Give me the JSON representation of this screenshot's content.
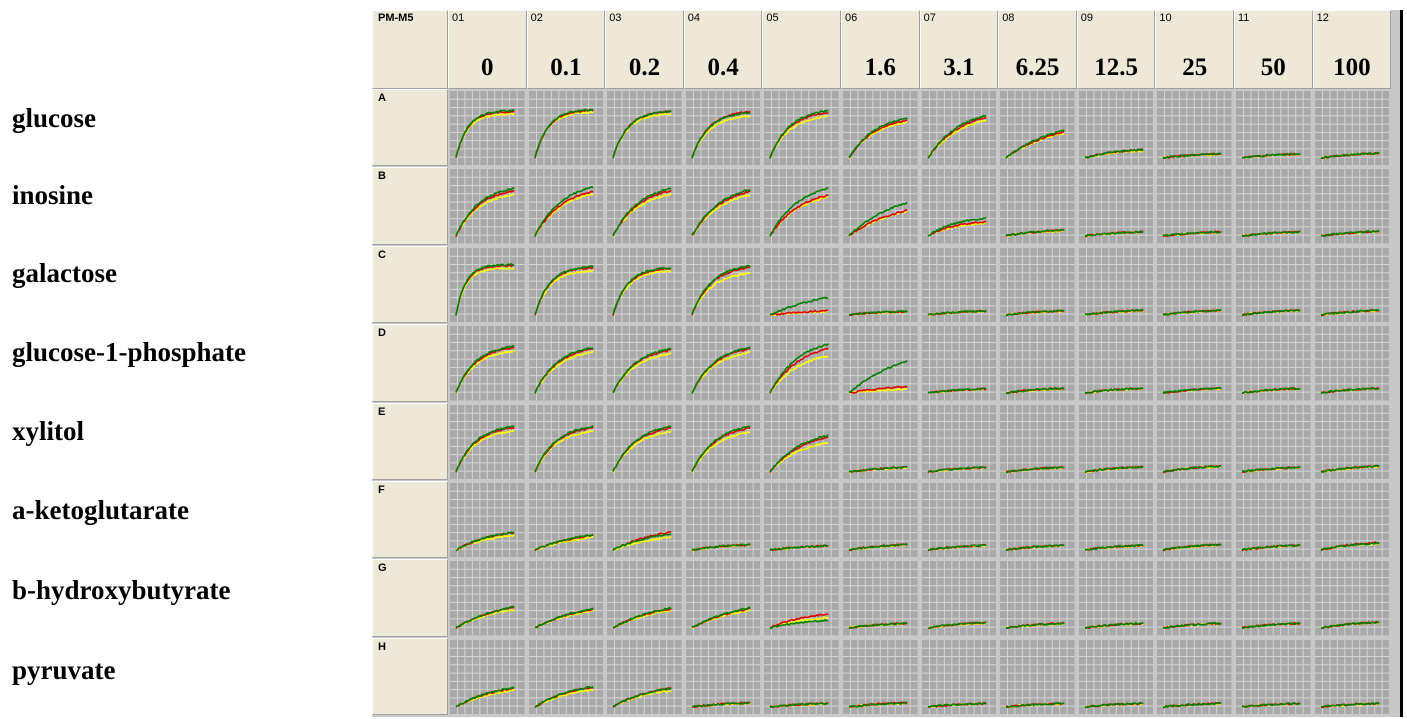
{
  "plate_name": "PM-M5",
  "columns": [
    {
      "id": "01",
      "conc": "0"
    },
    {
      "id": "02",
      "conc": "0.1"
    },
    {
      "id": "03",
      "conc": "0.2"
    },
    {
      "id": "04",
      "conc": "0.4"
    },
    {
      "id": "05",
      "conc": ""
    },
    {
      "id": "06",
      "conc": "1.6"
    },
    {
      "id": "07",
      "conc": "3.1"
    },
    {
      "id": "08",
      "conc": "6.25"
    },
    {
      "id": "09",
      "conc": "12.5"
    },
    {
      "id": "10",
      "conc": "25"
    },
    {
      "id": "11",
      "conc": "50"
    },
    {
      "id": "12",
      "conc": "100"
    }
  ],
  "rows": [
    {
      "letter": "A",
      "label": "glucose"
    },
    {
      "letter": "B",
      "label": "inosine"
    },
    {
      "letter": "C",
      "label": "galactose"
    },
    {
      "letter": "D",
      "label": "glucose-1-phosphate"
    },
    {
      "letter": "E",
      "label": "xylitol"
    },
    {
      "letter": "F",
      "label": "a-ketoglutarate"
    },
    {
      "letter": "G",
      "label": "b-hydroxybutyrate"
    },
    {
      "letter": "H",
      "label": "pyruvate"
    }
  ],
  "colors": {
    "well_bg": "#a9a9a9",
    "grid": "#d4d4d4",
    "plate_bg": "#c8c8c8",
    "header_bg": "#ece9d8",
    "series_red": "#e00000",
    "series_yellow": "#ffff00",
    "series_green": "#008000"
  },
  "chart_data": {
    "type": "line",
    "title": "",
    "xlabel": "",
    "ylabel": "",
    "series_names": [],
    "curve_model": "saturating kinetic curves per well; values are relative plateau height (0-1) and rise rate",
    "wells": [
      [
        {
          "plateau": 0.8,
          "rate": 5.0,
          "red": 1.0,
          "yellow": 0.95,
          "green": 1.02
        },
        {
          "plateau": 0.82,
          "rate": 4.5,
          "red": 1.0,
          "yellow": 0.96,
          "green": 1.01
        },
        {
          "plateau": 0.8,
          "rate": 4.0,
          "red": 1.0,
          "yellow": 0.95,
          "green": 1.0
        },
        {
          "plateau": 0.78,
          "rate": 3.5,
          "red": 1.02,
          "yellow": 0.92,
          "green": 1.0
        },
        {
          "plateau": 0.78,
          "rate": 3.0,
          "red": 1.0,
          "yellow": 0.92,
          "green": 1.04
        },
        {
          "plateau": 0.65,
          "rate": 2.2,
          "red": 1.0,
          "yellow": 0.95,
          "green": 1.05
        },
        {
          "plateau": 0.7,
          "rate": 1.8,
          "red": 1.0,
          "yellow": 0.93,
          "green": 1.05
        },
        {
          "plateau": 0.45,
          "rate": 1.2,
          "red": 1.0,
          "yellow": 0.95,
          "green": 1.05
        },
        {
          "plateau": 0.14,
          "rate": 2.0,
          "red": 1.0,
          "yellow": 0.85,
          "green": 1.0
        },
        {
          "plateau": 0.07,
          "rate": 1.5,
          "red": 1.0,
          "yellow": 0.9,
          "green": 1.0
        },
        {
          "plateau": 0.07,
          "rate": 1.5,
          "red": 1.0,
          "yellow": 0.9,
          "green": 1.0
        },
        {
          "plateau": 0.08,
          "rate": 1.5,
          "red": 1.0,
          "yellow": 0.95,
          "green": 1.0
        }
      ],
      [
        {
          "plateau": 0.78,
          "rate": 2.5,
          "red": 1.0,
          "yellow": 0.92,
          "green": 1.05
        },
        {
          "plateau": 0.8,
          "rate": 2.2,
          "red": 0.95,
          "yellow": 0.9,
          "green": 1.05
        },
        {
          "plateau": 0.78,
          "rate": 2.2,
          "red": 1.0,
          "yellow": 0.92,
          "green": 1.05
        },
        {
          "plateau": 0.77,
          "rate": 2.0,
          "red": 1.0,
          "yellow": 0.92,
          "green": 1.04
        },
        {
          "plateau": 0.76,
          "rate": 2.0,
          "red": 0.92,
          "yellow": 0.88,
          "green": 1.08
        },
        {
          "plateau": 0.5,
          "rate": 1.2,
          "red": 0.88,
          "yellow": 0.85,
          "green": 1.15
        },
        {
          "plateau": 0.28,
          "rate": 2.0,
          "red": 0.88,
          "yellow": 0.8,
          "green": 1.1
        },
        {
          "plateau": 0.1,
          "rate": 1.5,
          "red": 1.0,
          "yellow": 0.9,
          "green": 1.05
        },
        {
          "plateau": 0.07,
          "rate": 1.5,
          "red": 1.0,
          "yellow": 0.9,
          "green": 1.0
        },
        {
          "plateau": 0.07,
          "rate": 1.5,
          "red": 1.0,
          "yellow": 0.9,
          "green": 1.0
        },
        {
          "plateau": 0.07,
          "rate": 1.5,
          "red": 1.0,
          "yellow": 0.9,
          "green": 1.0
        },
        {
          "plateau": 0.08,
          "rate": 1.5,
          "red": 1.0,
          "yellow": 0.9,
          "green": 1.0
        }
      ],
      [
        {
          "plateau": 0.85,
          "rate": 6.0,
          "red": 1.0,
          "yellow": 0.95,
          "green": 1.02
        },
        {
          "plateau": 0.82,
          "rate": 4.0,
          "red": 1.0,
          "yellow": 0.93,
          "green": 1.02
        },
        {
          "plateau": 0.8,
          "rate": 4.0,
          "red": 1.0,
          "yellow": 0.95,
          "green": 1.02
        },
        {
          "plateau": 0.82,
          "rate": 3.0,
          "red": 1.0,
          "yellow": 0.88,
          "green": 1.03
        },
        {
          "plateau": 0.3,
          "rate": 1.0,
          "red": 0.25,
          "yellow": 0.2,
          "green": 1.0
        },
        {
          "plateau": 0.06,
          "rate": 1.5,
          "red": 1.0,
          "yellow": 0.9,
          "green": 1.0
        },
        {
          "plateau": 0.07,
          "rate": 1.5,
          "red": 1.0,
          "yellow": 0.9,
          "green": 1.0
        },
        {
          "plateau": 0.07,
          "rate": 1.5,
          "red": 1.0,
          "yellow": 0.9,
          "green": 1.0
        },
        {
          "plateau": 0.08,
          "rate": 1.5,
          "red": 1.0,
          "yellow": 0.9,
          "green": 1.0
        },
        {
          "plateau": 0.08,
          "rate": 1.5,
          "red": 1.0,
          "yellow": 0.9,
          "green": 1.0
        },
        {
          "plateau": 0.08,
          "rate": 1.5,
          "red": 1.0,
          "yellow": 0.9,
          "green": 1.0
        },
        {
          "plateau": 0.08,
          "rate": 1.5,
          "red": 1.0,
          "yellow": 0.9,
          "green": 1.0
        }
      ],
      [
        {
          "plateau": 0.78,
          "rate": 3.0,
          "red": 1.0,
          "yellow": 0.93,
          "green": 1.03
        },
        {
          "plateau": 0.76,
          "rate": 2.5,
          "red": 1.0,
          "yellow": 0.93,
          "green": 1.03
        },
        {
          "plateau": 0.74,
          "rate": 2.5,
          "red": 1.0,
          "yellow": 0.92,
          "green": 1.03
        },
        {
          "plateau": 0.76,
          "rate": 2.5,
          "red": 1.0,
          "yellow": 0.92,
          "green": 1.03
        },
        {
          "plateau": 0.8,
          "rate": 2.0,
          "red": 0.95,
          "yellow": 0.8,
          "green": 1.05
        },
        {
          "plateau": 0.55,
          "rate": 1.0,
          "red": 0.2,
          "yellow": 0.12,
          "green": 1.0
        },
        {
          "plateau": 0.07,
          "rate": 1.5,
          "red": 1.0,
          "yellow": 0.9,
          "green": 1.0
        },
        {
          "plateau": 0.08,
          "rate": 1.5,
          "red": 1.0,
          "yellow": 0.9,
          "green": 1.0
        },
        {
          "plateau": 0.08,
          "rate": 1.5,
          "red": 1.0,
          "yellow": 0.9,
          "green": 1.0
        },
        {
          "plateau": 0.08,
          "rate": 1.5,
          "red": 1.0,
          "yellow": 0.9,
          "green": 1.0
        },
        {
          "plateau": 0.08,
          "rate": 1.5,
          "red": 1.0,
          "yellow": 0.9,
          "green": 1.0
        },
        {
          "plateau": 0.08,
          "rate": 1.5,
          "red": 1.0,
          "yellow": 0.9,
          "green": 1.0
        }
      ],
      [
        {
          "plateau": 0.76,
          "rate": 3.0,
          "red": 1.0,
          "yellow": 0.93,
          "green": 1.03
        },
        {
          "plateau": 0.76,
          "rate": 2.8,
          "red": 1.0,
          "yellow": 0.92,
          "green": 1.03
        },
        {
          "plateau": 0.76,
          "rate": 2.5,
          "red": 1.0,
          "yellow": 0.92,
          "green": 1.03
        },
        {
          "plateau": 0.76,
          "rate": 2.5,
          "red": 1.0,
          "yellow": 0.9,
          "green": 1.03
        },
        {
          "plateau": 0.6,
          "rate": 1.8,
          "red": 1.0,
          "yellow": 0.85,
          "green": 1.05
        },
        {
          "plateau": 0.08,
          "rate": 1.5,
          "red": 1.0,
          "yellow": 0.9,
          "green": 1.0
        },
        {
          "plateau": 0.08,
          "rate": 1.5,
          "red": 1.0,
          "yellow": 0.9,
          "green": 1.0
        },
        {
          "plateau": 0.08,
          "rate": 1.5,
          "red": 1.0,
          "yellow": 0.9,
          "green": 1.0
        },
        {
          "plateau": 0.09,
          "rate": 1.5,
          "red": 1.0,
          "yellow": 0.9,
          "green": 1.0
        },
        {
          "plateau": 0.1,
          "rate": 1.5,
          "red": 1.0,
          "yellow": 0.9,
          "green": 1.0
        },
        {
          "plateau": 0.08,
          "rate": 1.5,
          "red": 1.0,
          "yellow": 0.9,
          "green": 1.0
        },
        {
          "plateau": 0.1,
          "rate": 1.5,
          "red": 1.0,
          "yellow": 0.9,
          "green": 1.0
        }
      ],
      [
        {
          "plateau": 0.3,
          "rate": 1.5,
          "red": 1.0,
          "yellow": 0.85,
          "green": 1.02
        },
        {
          "plateau": 0.25,
          "rate": 1.2,
          "red": 1.0,
          "yellow": 0.88,
          "green": 1.05
        },
        {
          "plateau": 0.28,
          "rate": 1.2,
          "red": 1.1,
          "yellow": 0.8,
          "green": 1.0
        },
        {
          "plateau": 0.09,
          "rate": 1.5,
          "red": 1.0,
          "yellow": 0.9,
          "green": 1.05
        },
        {
          "plateau": 0.07,
          "rate": 1.5,
          "red": 1.0,
          "yellow": 0.9,
          "green": 1.0
        },
        {
          "plateau": 0.09,
          "rate": 1.5,
          "red": 1.05,
          "yellow": 0.9,
          "green": 1.0
        },
        {
          "plateau": 0.08,
          "rate": 1.5,
          "red": 1.0,
          "yellow": 0.9,
          "green": 1.0
        },
        {
          "plateau": 0.08,
          "rate": 1.5,
          "red": 1.0,
          "yellow": 0.9,
          "green": 1.0
        },
        {
          "plateau": 0.08,
          "rate": 1.5,
          "red": 1.0,
          "yellow": 0.9,
          "green": 1.0
        },
        {
          "plateau": 0.09,
          "rate": 1.5,
          "red": 1.05,
          "yellow": 0.9,
          "green": 1.0
        },
        {
          "plateau": 0.08,
          "rate": 1.5,
          "red": 1.0,
          "yellow": 0.9,
          "green": 1.0
        },
        {
          "plateau": 0.12,
          "rate": 1.5,
          "red": 1.05,
          "yellow": 0.9,
          "green": 1.0
        }
      ],
      [
        {
          "plateau": 0.35,
          "rate": 1.3,
          "red": 1.0,
          "yellow": 0.9,
          "green": 1.03
        },
        {
          "plateau": 0.32,
          "rate": 1.2,
          "red": 1.0,
          "yellow": 0.92,
          "green": 1.03
        },
        {
          "plateau": 0.33,
          "rate": 1.2,
          "red": 1.0,
          "yellow": 0.92,
          "green": 1.03
        },
        {
          "plateau": 0.33,
          "rate": 1.2,
          "red": 1.0,
          "yellow": 0.92,
          "green": 1.05
        },
        {
          "plateau": 0.22,
          "rate": 1.5,
          "red": 1.1,
          "yellow": 0.8,
          "green": 0.6
        },
        {
          "plateau": 0.08,
          "rate": 1.5,
          "red": 1.0,
          "yellow": 0.9,
          "green": 1.0
        },
        {
          "plateau": 0.09,
          "rate": 1.5,
          "red": 1.0,
          "yellow": 0.9,
          "green": 1.0
        },
        {
          "plateau": 0.08,
          "rate": 1.5,
          "red": 1.0,
          "yellow": 0.9,
          "green": 1.0
        },
        {
          "plateau": 0.08,
          "rate": 1.5,
          "red": 1.0,
          "yellow": 0.9,
          "green": 1.0
        },
        {
          "plateau": 0.08,
          "rate": 1.5,
          "red": 1.0,
          "yellow": 0.9,
          "green": 1.0
        },
        {
          "plateau": 0.08,
          "rate": 1.5,
          "red": 1.0,
          "yellow": 0.9,
          "green": 1.0
        },
        {
          "plateau": 0.1,
          "rate": 1.5,
          "red": 1.0,
          "yellow": 0.9,
          "green": 1.0
        }
      ],
      [
        {
          "plateau": 0.32,
          "rate": 1.5,
          "red": 1.0,
          "yellow": 0.9,
          "green": 1.03
        },
        {
          "plateau": 0.34,
          "rate": 1.5,
          "red": 1.0,
          "yellow": 0.88,
          "green": 1.03
        },
        {
          "plateau": 0.32,
          "rate": 1.5,
          "red": 1.0,
          "yellow": 0.88,
          "green": 1.0
        },
        {
          "plateau": 0.07,
          "rate": 1.5,
          "red": 1.0,
          "yellow": 0.9,
          "green": 1.0
        },
        {
          "plateau": 0.06,
          "rate": 1.5,
          "red": 1.0,
          "yellow": 0.9,
          "green": 1.0
        },
        {
          "plateau": 0.07,
          "rate": 1.5,
          "red": 1.05,
          "yellow": 0.9,
          "green": 1.0
        },
        {
          "plateau": 0.06,
          "rate": 1.5,
          "red": 1.0,
          "yellow": 0.9,
          "green": 1.0
        },
        {
          "plateau": 0.06,
          "rate": 1.5,
          "red": 1.0,
          "yellow": 0.9,
          "green": 1.0
        },
        {
          "plateau": 0.06,
          "rate": 1.5,
          "red": 1.0,
          "yellow": 0.9,
          "green": 1.0
        },
        {
          "plateau": 0.06,
          "rate": 1.5,
          "red": 1.0,
          "yellow": 0.9,
          "green": 1.0
        },
        {
          "plateau": 0.06,
          "rate": 1.5,
          "red": 1.0,
          "yellow": 0.9,
          "green": 1.0
        },
        {
          "plateau": 0.06,
          "rate": 1.5,
          "red": 1.0,
          "yellow": 0.9,
          "green": 1.0
        }
      ]
    ]
  }
}
